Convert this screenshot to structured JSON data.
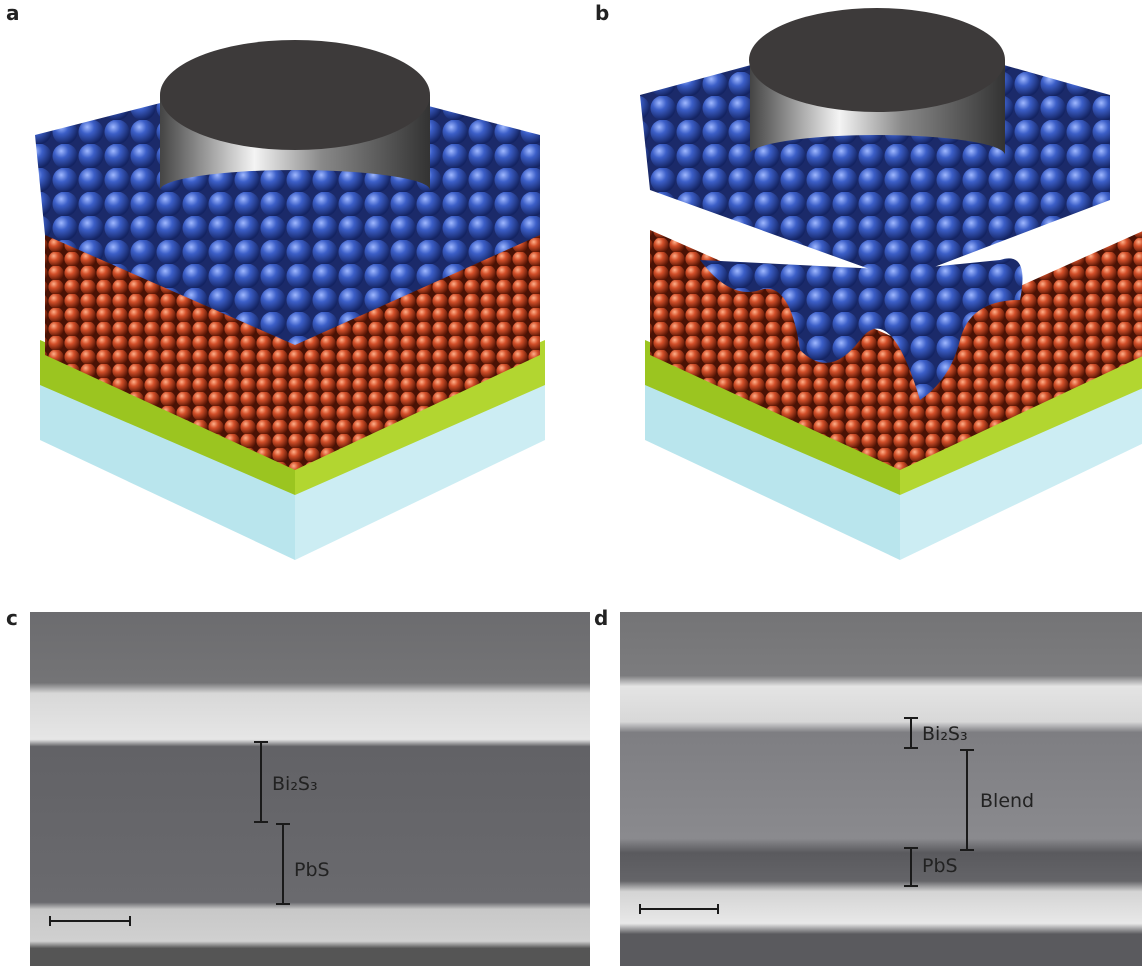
{
  "panels": {
    "a": {
      "label": "a"
    },
    "b": {
      "label": "b"
    },
    "c": {
      "label": "c",
      "annotations": [
        "Bi₂S₃",
        "PbS"
      ]
    },
    "d": {
      "label": "d",
      "annotations": [
        "Bi₂S₃",
        "Blend",
        "PbS"
      ]
    }
  }
}
